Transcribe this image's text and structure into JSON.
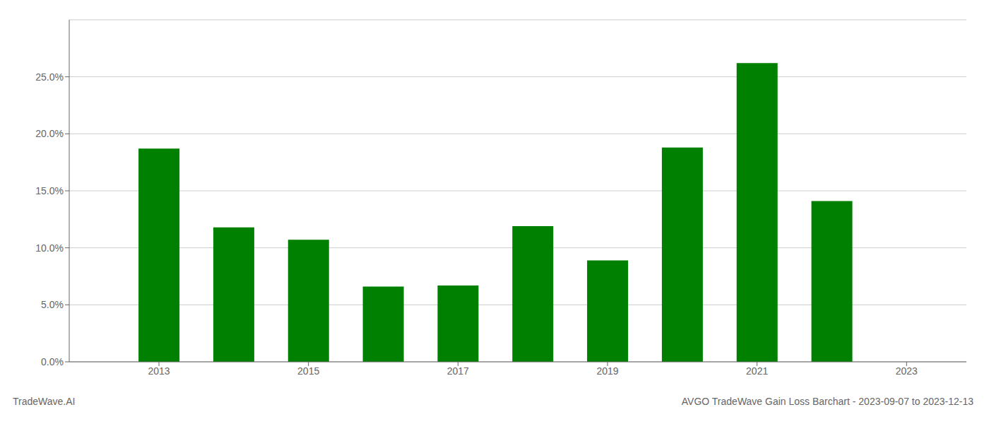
{
  "chart_data": {
    "type": "bar",
    "x": [
      2013,
      2014,
      2015,
      2016,
      2017,
      2018,
      2019,
      2020,
      2021,
      2022
    ],
    "values": [
      0.187,
      0.118,
      0.107,
      0.066,
      0.067,
      0.119,
      0.089,
      0.188,
      0.262,
      0.141
    ],
    "color": "#008000",
    "xlim": [
      2011.8,
      2023.8
    ],
    "xticks": [
      2013,
      2015,
      2017,
      2019,
      2021,
      2023
    ],
    "ylim": [
      0,
      0.3
    ],
    "yticks": [
      {
        "value": 0.0,
        "label": "0.0%"
      },
      {
        "value": 0.05,
        "label": "5.0%"
      },
      {
        "value": 0.1,
        "label": "10.0%"
      },
      {
        "value": 0.15,
        "label": "15.0%"
      },
      {
        "value": 0.2,
        "label": "20.0%"
      },
      {
        "value": 0.25,
        "label": "25.0%"
      }
    ],
    "grid": true,
    "annotations": [
      "TradeWave.AI",
      "AVGO TradeWave Gain Loss Barchart - 2023-09-07 to 2023-12-13"
    ]
  }
}
